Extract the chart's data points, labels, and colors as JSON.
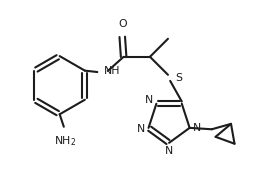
{
  "bg": "#ffffff",
  "lc": "#1c1c1c",
  "lw": 1.5,
  "fs": 7.8,
  "xlim": [
    0,
    10
  ],
  "ylim": [
    0,
    6.7
  ]
}
